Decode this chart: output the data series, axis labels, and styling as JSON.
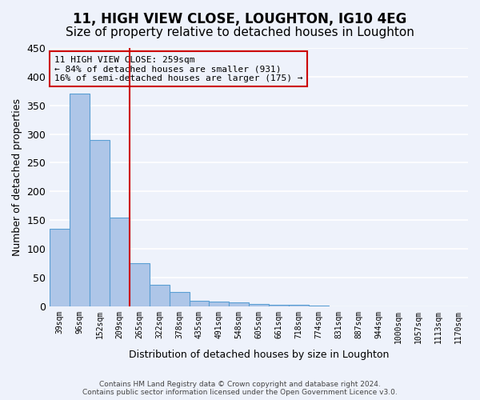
{
  "title": "11, HIGH VIEW CLOSE, LOUGHTON, IG10 4EG",
  "subtitle": "Size of property relative to detached houses in Loughton",
  "xlabel": "Distribution of detached houses by size in Loughton",
  "ylabel": "Number of detached properties",
  "footnote1": "Contains HM Land Registry data © Crown copyright and database right 2024.",
  "footnote2": "Contains public sector information licensed under the Open Government Licence v3.0.",
  "annotation_line1": "11 HIGH VIEW CLOSE: 259sqm",
  "annotation_line2": "← 84% of detached houses are smaller (931)",
  "annotation_line3": "16% of semi-detached houses are larger (175) →",
  "bins": [
    "39sqm",
    "96sqm",
    "152sqm",
    "209sqm",
    "265sqm",
    "322sqm",
    "378sqm",
    "435sqm",
    "491sqm",
    "548sqm",
    "605sqm",
    "661sqm",
    "718sqm",
    "774sqm",
    "831sqm",
    "887sqm",
    "944sqm",
    "1000sqm",
    "1057sqm",
    "1113sqm",
    "1170sqm"
  ],
  "values": [
    135,
    370,
    290,
    155,
    75,
    37,
    25,
    10,
    8,
    6,
    4,
    3,
    2,
    1,
    0,
    0,
    0,
    0,
    0,
    0,
    0
  ],
  "bar_color": "#aec6e8",
  "bar_edge_color": "#5a9fd4",
  "vline_color": "#cc0000",
  "vline_position": 3.5,
  "ylim": [
    0,
    450
  ],
  "yticks": [
    0,
    50,
    100,
    150,
    200,
    250,
    300,
    350,
    400,
    450
  ],
  "bg_color": "#eef2fb",
  "grid_color": "#ffffff",
  "annotation_box_color": "#cc0000",
  "title_fontsize": 12,
  "subtitle_fontsize": 11
}
